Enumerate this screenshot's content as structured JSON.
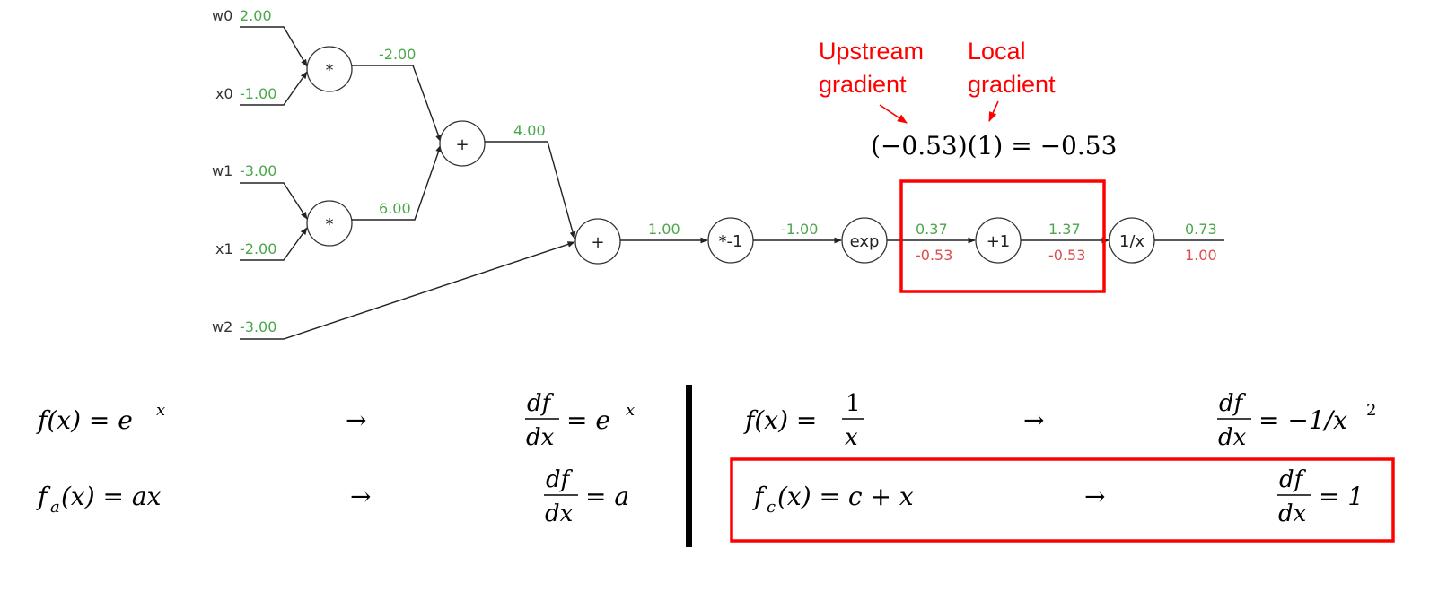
{
  "colors": {
    "forward": "#4aa84a",
    "backward": "#d9504f",
    "highlight": "#ff0000",
    "ink": "#000000"
  },
  "inputs": {
    "w0": {
      "name": "w0",
      "value": "2.00"
    },
    "x0": {
      "name": "x0",
      "value": "-1.00"
    },
    "w1": {
      "name": "w1",
      "value": "-3.00"
    },
    "x1": {
      "name": "x1",
      "value": "-2.00"
    },
    "w2": {
      "name": "w2",
      "value": "-3.00"
    }
  },
  "nodes": {
    "mul0": "*",
    "mul1": "*",
    "add0": "+",
    "add1": "+",
    "neg": "*-1",
    "exp": "exp",
    "plus1": "+1",
    "recip": "1/x"
  },
  "edges": {
    "mul0_out": "-2.00",
    "mul1_out": "6.00",
    "add0_out": "4.00",
    "add1_out": "1.00",
    "neg_out": "-1.00",
    "exp_out": "0.37",
    "exp_out_grad": "-0.53",
    "plus1_out": "1.37",
    "plus1_out_grad": "-0.53",
    "recip_out": "0.73",
    "recip_out_grad": "1.00"
  },
  "annotations": {
    "upstream_line1": "Upstream",
    "upstream_line2": "gradient",
    "local_line1": "Local",
    "local_line2": "gradient",
    "product_lhs": "(−0.53)(1) = −0.53"
  },
  "formulas": {
    "exp_lhs": "f(x) = e",
    "exp_sup": "x",
    "exp_rhs": "= e",
    "exp_rhs_sup": "x",
    "scale_f": "f",
    "scale_sub": "a",
    "scale_lhs": "(x) = ax",
    "scale_rhs": "= a",
    "recip_lhs": "f(x) =",
    "recip_num": "1",
    "recip_den": "x",
    "recip_rhs": "= −1/x",
    "recip_rhs_sup": "2",
    "const_f": "f",
    "const_sub": "c",
    "const_lhs": "(x) = c + x",
    "const_rhs": "= 1",
    "df": "df",
    "dx": "dx",
    "arrow": "→"
  }
}
